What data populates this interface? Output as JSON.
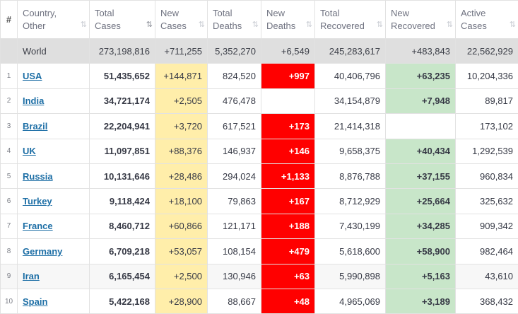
{
  "headers": [
    {
      "label": "#",
      "sortable": false
    },
    {
      "label": "Country,\nOther",
      "sortable": true
    },
    {
      "label": "Total\nCases",
      "sortable": true,
      "active": true
    },
    {
      "label": "New\nCases",
      "sortable": true
    },
    {
      "label": "Total\nDeaths",
      "sortable": true
    },
    {
      "label": "New\nDeaths",
      "sortable": true
    },
    {
      "label": "Total\nRecovered",
      "sortable": true
    },
    {
      "label": "New\nRecovered",
      "sortable": true
    },
    {
      "label": "Active\nCases",
      "sortable": true
    }
  ],
  "sort_icon": "⇅",
  "world": {
    "country": "World",
    "total_cases": "273,198,816",
    "new_cases": "+711,255",
    "total_deaths": "5,352,270",
    "new_deaths": "+6,549",
    "total_recovered": "245,283,617",
    "new_recovered": "+483,843",
    "active_cases": "22,562,929"
  },
  "rows": [
    {
      "num": "1",
      "country": "USA",
      "total_cases": "51,435,652",
      "new_cases": "+144,871",
      "total_deaths": "824,520",
      "new_deaths": "+997",
      "total_recovered": "40,406,796",
      "new_recovered": "+63,235",
      "active_cases": "10,204,336"
    },
    {
      "num": "2",
      "country": "India",
      "total_cases": "34,721,174",
      "new_cases": "+2,505",
      "total_deaths": "476,478",
      "new_deaths": "",
      "total_recovered": "34,154,879",
      "new_recovered": "+7,948",
      "active_cases": "89,817"
    },
    {
      "num": "3",
      "country": "Brazil",
      "total_cases": "22,204,941",
      "new_cases": "+3,720",
      "total_deaths": "617,521",
      "new_deaths": "+173",
      "total_recovered": "21,414,318",
      "new_recovered": "",
      "active_cases": "173,102"
    },
    {
      "num": "4",
      "country": "UK",
      "total_cases": "11,097,851",
      "new_cases": "+88,376",
      "total_deaths": "146,937",
      "new_deaths": "+146",
      "total_recovered": "9,658,375",
      "new_recovered": "+40,434",
      "active_cases": "1,292,539"
    },
    {
      "num": "5",
      "country": "Russia",
      "total_cases": "10,131,646",
      "new_cases": "+28,486",
      "total_deaths": "294,024",
      "new_deaths": "+1,133",
      "total_recovered": "8,876,788",
      "new_recovered": "+37,155",
      "active_cases": "960,834"
    },
    {
      "num": "6",
      "country": "Turkey",
      "total_cases": "9,118,424",
      "new_cases": "+18,100",
      "total_deaths": "79,863",
      "new_deaths": "+167",
      "total_recovered": "8,712,929",
      "new_recovered": "+25,664",
      "active_cases": "325,632"
    },
    {
      "num": "7",
      "country": "France",
      "total_cases": "8,460,712",
      "new_cases": "+60,866",
      "total_deaths": "121,171",
      "new_deaths": "+188",
      "total_recovered": "7,430,199",
      "new_recovered": "+34,285",
      "active_cases": "909,342"
    },
    {
      "num": "8",
      "country": "Germany",
      "total_cases": "6,709,218",
      "new_cases": "+53,057",
      "total_deaths": "108,154",
      "new_deaths": "+479",
      "total_recovered": "5,618,600",
      "new_recovered": "+58,900",
      "active_cases": "982,464"
    },
    {
      "num": "9",
      "country": "Iran",
      "total_cases": "6,165,454",
      "new_cases": "+2,500",
      "total_deaths": "130,946",
      "new_deaths": "+63",
      "total_recovered": "5,990,898",
      "new_recovered": "+5,163",
      "active_cases": "43,610"
    },
    {
      "num": "10",
      "country": "Spain",
      "total_cases": "5,422,168",
      "new_cases": "+28,900",
      "total_deaths": "88,667",
      "new_deaths": "+48",
      "total_recovered": "4,965,069",
      "new_recovered": "+3,189",
      "active_cases": "368,432"
    }
  ],
  "colors": {
    "new_cases_bg": "#ffeeaa",
    "new_deaths_bg": "#ff0000",
    "new_recovered_bg": "#c8e6c9",
    "world_row_bg": "#dfdfdf",
    "link": "#1e6fa6"
  }
}
